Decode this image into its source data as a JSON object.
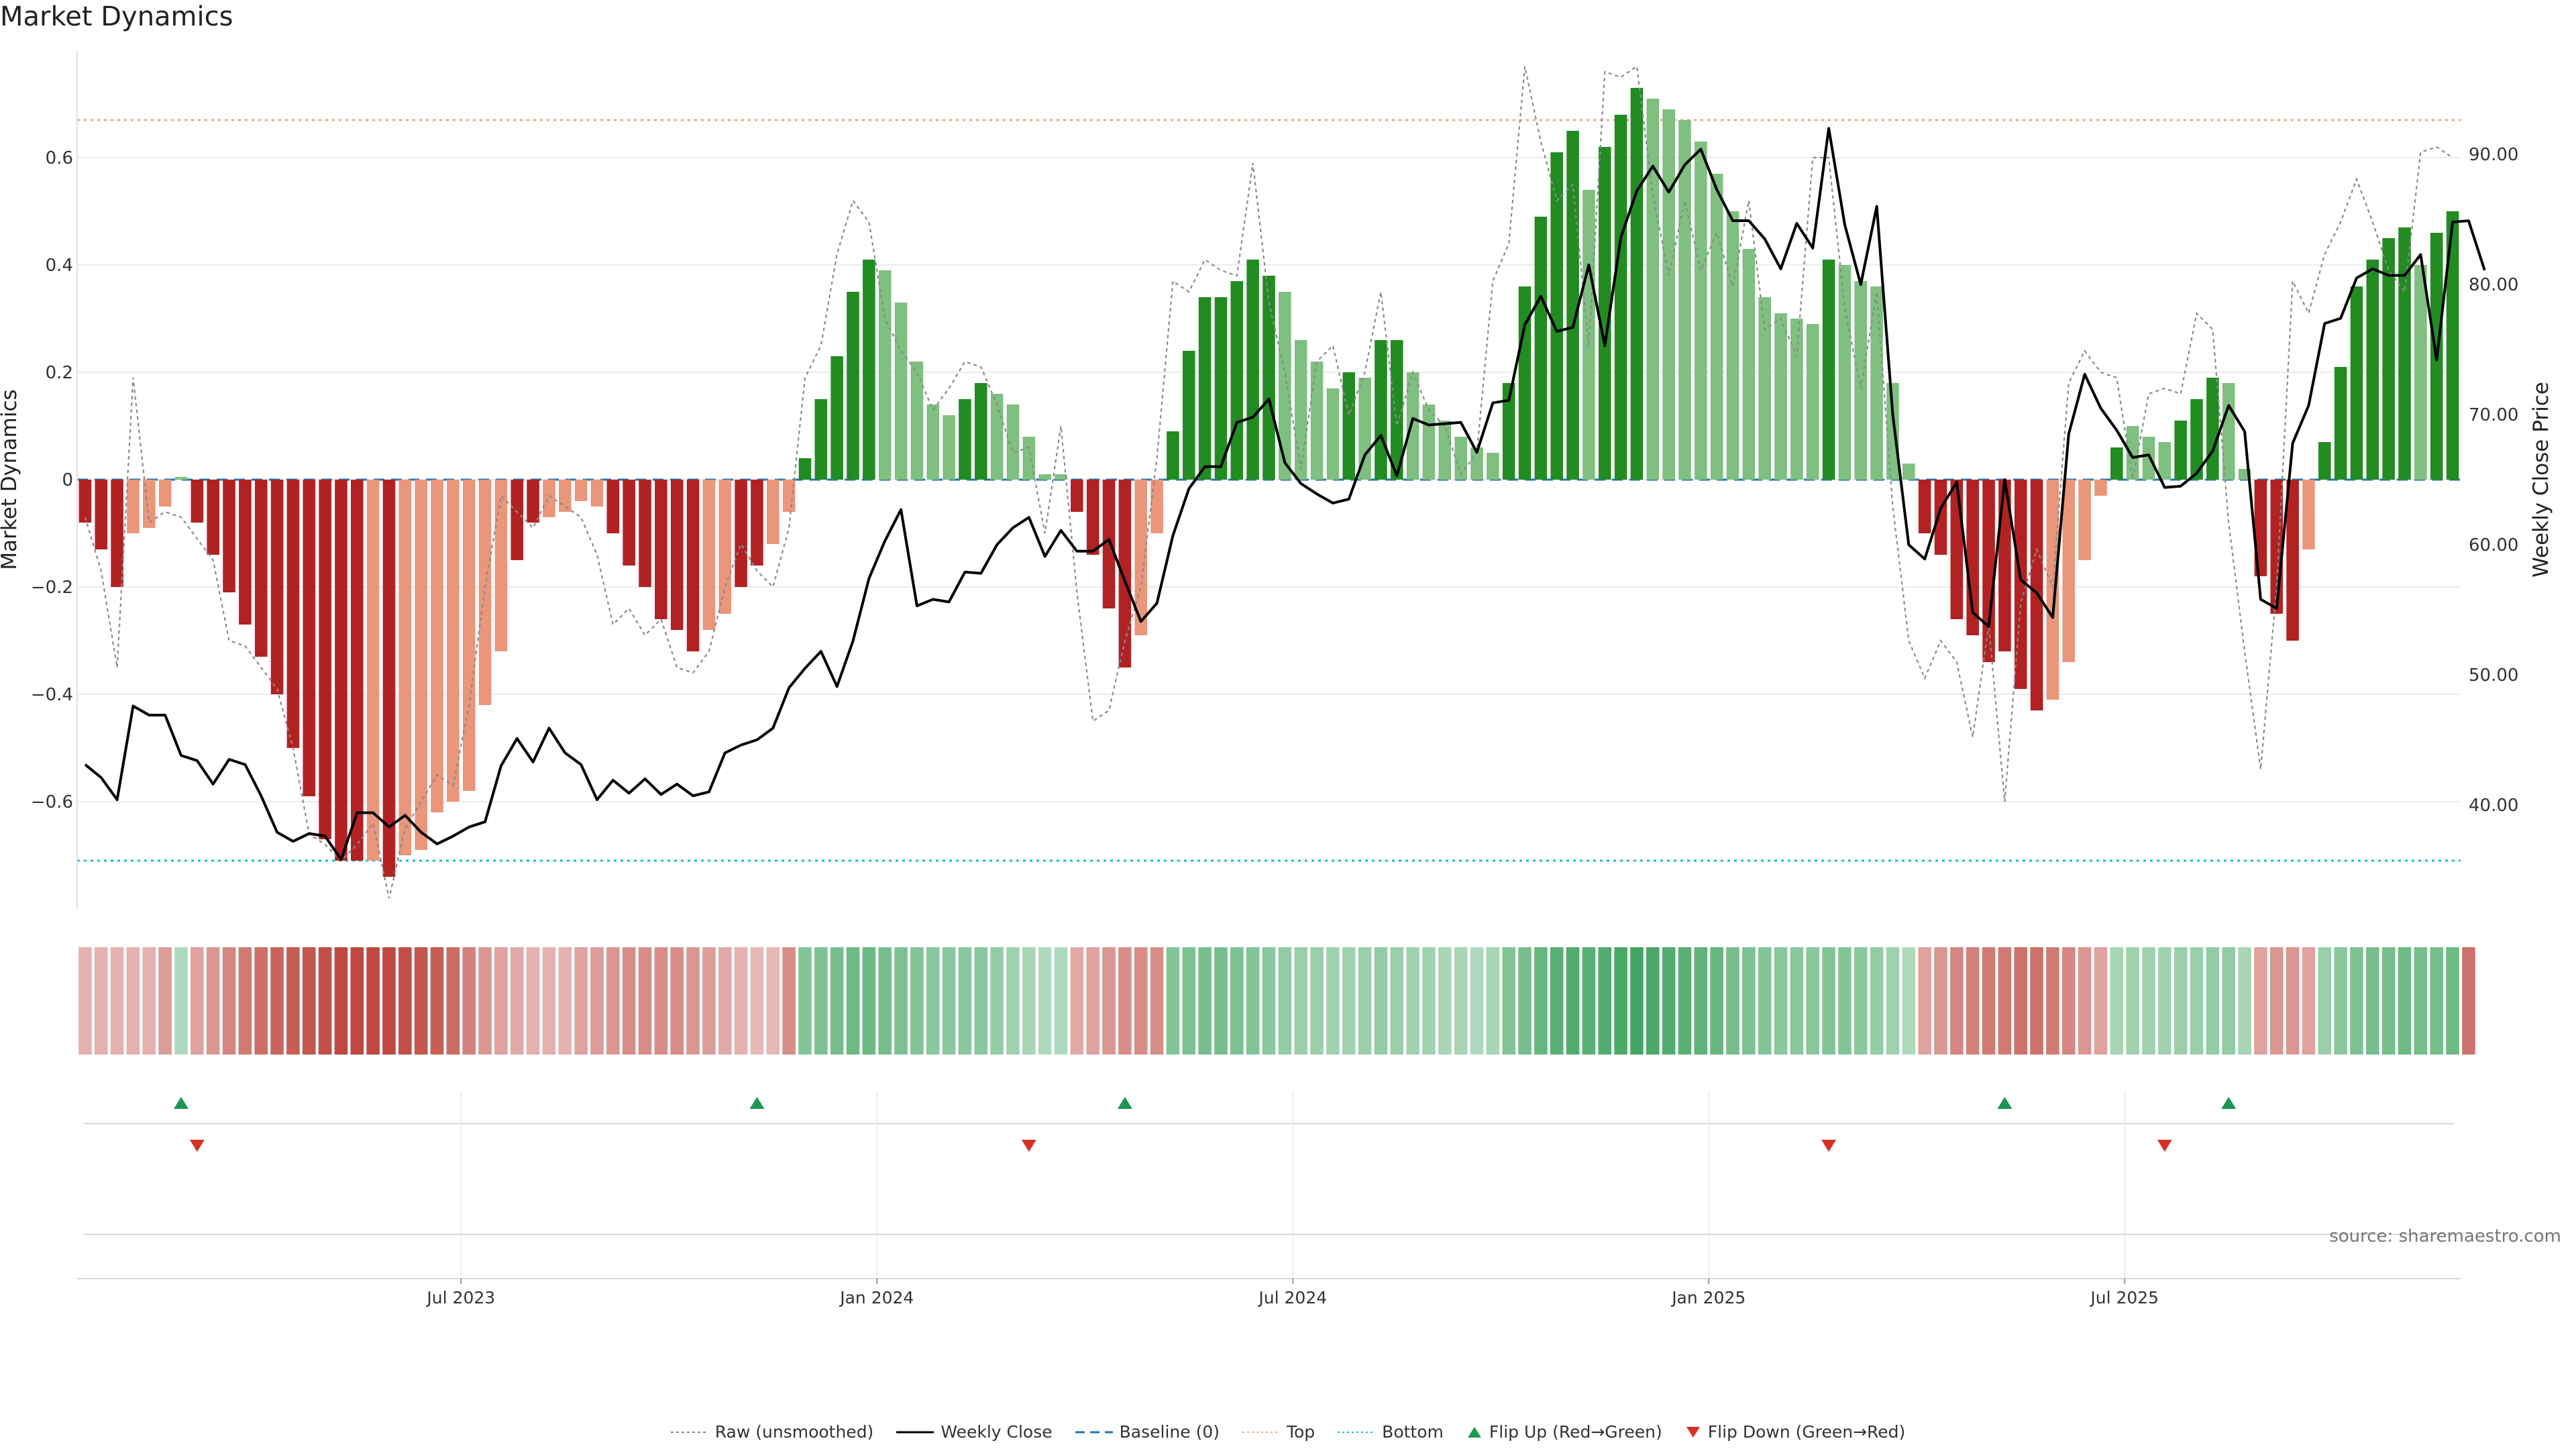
{
  "title": "Market Dynamics",
  "source": "source: sharemaestro.com",
  "chart_data": {
    "type": "bar",
    "title": "Market Dynamics",
    "ylabel_left": "Market Dynamics",
    "ylabel_right": "Weekly Close Price",
    "ylim_left": [
      -0.8,
      0.8
    ],
    "ylim_right": [
      32,
      98
    ],
    "yticks_left": [
      -0.6,
      -0.4,
      -0.2,
      0,
      0.2,
      0.4,
      0.6
    ],
    "ytick_labels_left": [
      "−0.6",
      "−0.4",
      "−0.2",
      "0",
      "0.2",
      "0.4",
      "0.6"
    ],
    "yticks_right": [
      40,
      50,
      60,
      70,
      80,
      90
    ],
    "ytick_labels_right": [
      "40.00",
      "50.00",
      "60.00",
      "70.00",
      "80.00",
      "90.00"
    ],
    "x_ticks": [
      {
        "label": "Jul 2023",
        "week": 24
      },
      {
        "label": "Jan 2024",
        "week": 50
      },
      {
        "label": "Jul 2024",
        "week": 76
      },
      {
        "label": "Jan 2025",
        "week": 102
      },
      {
        "label": "Jul 2025",
        "week": 128
      }
    ],
    "top_line": 0.67,
    "bottom_line": -0.71,
    "baseline": 0,
    "colors": {
      "strong_green": "#228b22",
      "light_green": "#7fbf7f",
      "strong_red": "#b22222",
      "light_red": "#e9967a",
      "top": "#f4a582",
      "bottom": "#17becf",
      "baseline": "#1f77b4",
      "flip_up": "#1a9850",
      "flip_down": "#d73027"
    },
    "series": [
      {
        "name": "Market Dynamics (bars)",
        "values": [
          -0.08,
          -0.13,
          -0.2,
          -0.1,
          -0.09,
          -0.05,
          0.005,
          -0.08,
          -0.14,
          -0.21,
          -0.27,
          -0.33,
          -0.4,
          -0.5,
          -0.59,
          -0.67,
          -0.71,
          -0.71,
          -0.71,
          -0.74,
          -0.7,
          -0.69,
          -0.62,
          -0.6,
          -0.58,
          -0.42,
          -0.32,
          -0.15,
          -0.08,
          -0.07,
          -0.06,
          -0.04,
          -0.05,
          -0.1,
          -0.16,
          -0.2,
          -0.26,
          -0.28,
          -0.32,
          -0.28,
          -0.25,
          -0.2,
          -0.16,
          -0.12,
          -0.06,
          0.04,
          0.15,
          0.23,
          0.35,
          0.41,
          0.39,
          0.33,
          0.22,
          0.14,
          0.12,
          0.15,
          0.18,
          0.16,
          0.14,
          0.08,
          0.01,
          0.01,
          -0.06,
          -0.14,
          -0.24,
          -0.35,
          -0.29,
          -0.1,
          0.09,
          0.24,
          0.34,
          0.34,
          0.37,
          0.41,
          0.38,
          0.35,
          0.26,
          0.22,
          0.17,
          0.2,
          0.19,
          0.26,
          0.26,
          0.2,
          0.14,
          0.11,
          0.08,
          0.06,
          0.05,
          0.18,
          0.36,
          0.49,
          0.61,
          0.65,
          0.54,
          0.62,
          0.68,
          0.73,
          0.71,
          0.69,
          0.67,
          0.63,
          0.57,
          0.5,
          0.43,
          0.34,
          0.31,
          0.3,
          0.29,
          0.41,
          0.4,
          0.37,
          0.36,
          0.18,
          0.03,
          -0.1,
          -0.14,
          -0.26,
          -0.29,
          -0.34,
          -0.32,
          -0.39,
          -0.43,
          -0.41,
          -0.34,
          -0.15,
          -0.03,
          0.06,
          0.1,
          0.08,
          0.07,
          0.11,
          0.15,
          0.19,
          0.18,
          0.02,
          -0.18,
          -0.25,
          -0.3,
          -0.13,
          0.07,
          0.21,
          0.36,
          0.41,
          0.45,
          0.47,
          0.4,
          0.46,
          0.5
        ],
        "shade": [
          "s",
          "s",
          "s",
          "l",
          "l",
          "l",
          "l",
          "s",
          "s",
          "s",
          "s",
          "s",
          "s",
          "s",
          "s",
          "s",
          "s",
          "s",
          "l",
          "s",
          "l",
          "l",
          "l",
          "l",
          "l",
          "l",
          "l",
          "s",
          "s",
          "l",
          "l",
          "l",
          "l",
          "s",
          "s",
          "s",
          "s",
          "s",
          "s",
          "l",
          "l",
          "s",
          "s",
          "l",
          "l",
          "s",
          "s",
          "s",
          "s",
          "s",
          "l",
          "l",
          "l",
          "l",
          "l",
          "s",
          "s",
          "l",
          "l",
          "l",
          "l",
          "l",
          "s",
          "s",
          "s",
          "s",
          "l",
          "l",
          "s",
          "s",
          "s",
          "s",
          "s",
          "s",
          "s",
          "l",
          "l",
          "l",
          "l",
          "s",
          "l",
          "s",
          "s",
          "l",
          "l",
          "l",
          "l",
          "l",
          "l",
          "s",
          "s",
          "s",
          "s",
          "s",
          "l",
          "s",
          "s",
          "s",
          "l",
          "l",
          "l",
          "l",
          "l",
          "l",
          "l",
          "l",
          "l",
          "l",
          "l",
          "s",
          "l",
          "l",
          "l",
          "l",
          "l",
          "s",
          "s",
          "s",
          "s",
          "s",
          "s",
          "s",
          "s",
          "l",
          "l",
          "l",
          "l",
          "s",
          "l",
          "l",
          "l",
          "s",
          "s",
          "s",
          "l",
          "l",
          "s",
          "s",
          "s",
          "l",
          "s",
          "s",
          "s",
          "s",
          "s",
          "s",
          "l",
          "s",
          "s"
        ]
      },
      {
        "name": "Weekly Close",
        "values": [
          43.1,
          42.1,
          40.4,
          47.6,
          46.9,
          46.9,
          43.8,
          43.4,
          41.6,
          43.5,
          43.1,
          40.7,
          37.9,
          37.2,
          37.8,
          37.6,
          35.8,
          39.4,
          39.4,
          38.3,
          39.2,
          37.9,
          37.0,
          37.6,
          38.3,
          38.7,
          43.0,
          45.1,
          43.3,
          45.9,
          44.0,
          43.1,
          40.4,
          41.9,
          40.9,
          42.0,
          40.8,
          41.6,
          40.7,
          41.0,
          44.0,
          44.6,
          45.0,
          45.9,
          49.0,
          50.5,
          51.8,
          49.1,
          52.6,
          57.4,
          60.3,
          62.7,
          55.3,
          55.8,
          55.6,
          57.9,
          57.8,
          60.0,
          61.3,
          62.1,
          59.1,
          61.1,
          59.5,
          59.5,
          60.4,
          57.2,
          54.1,
          55.5,
          60.7,
          64.3,
          66.0,
          66.0,
          69.4,
          69.8,
          71.2,
          66.3,
          64.7,
          63.9,
          63.2,
          63.5,
          66.9,
          68.4,
          65.3,
          69.7,
          69.2,
          69.3,
          69.4,
          67.1,
          70.9,
          71.1,
          76.9,
          79.1,
          76.4,
          76.7,
          81.5,
          75.3,
          83.6,
          87.2,
          89.1,
          87.1,
          89.2,
          90.4,
          87.3,
          84.9,
          84.9,
          83.5,
          81.2,
          84.7,
          82.8,
          92.0,
          84.6,
          80.0,
          86.0,
          70.0,
          60.0,
          58.9,
          62.8,
          64.8,
          54.8,
          53.7,
          65.0,
          57.3,
          56.3,
          54.4,
          68.5,
          73.1,
          70.5,
          68.8,
          66.7,
          66.9,
          64.4,
          64.5,
          65.5,
          67.2,
          70.7,
          68.7,
          55.8,
          55.1,
          67.8,
          70.7,
          77.0,
          77.4,
          80.5,
          81.2,
          80.7,
          80.7,
          82.3,
          74.2,
          84.8,
          84.9,
          81.1
        ]
      },
      {
        "name": "Raw (unsmoothed)",
        "values": [
          -0.07,
          -0.17,
          -0.35,
          0.19,
          -0.08,
          -0.06,
          -0.07,
          -0.11,
          -0.15,
          -0.3,
          -0.31,
          -0.35,
          -0.39,
          -0.5,
          -0.66,
          -0.68,
          -0.71,
          -0.68,
          -0.64,
          -0.78,
          -0.65,
          -0.6,
          -0.55,
          -0.57,
          -0.42,
          -0.2,
          -0.03,
          -0.06,
          -0.09,
          -0.03,
          -0.05,
          -0.07,
          -0.14,
          -0.27,
          -0.24,
          -0.29,
          -0.26,
          -0.35,
          -0.36,
          -0.32,
          -0.2,
          -0.12,
          -0.17,
          -0.2,
          -0.09,
          0.19,
          0.25,
          0.42,
          0.52,
          0.48,
          0.3,
          0.24,
          0.2,
          0.13,
          0.17,
          0.22,
          0.21,
          0.14,
          0.05,
          0.06,
          -0.1,
          0.1,
          -0.21,
          -0.45,
          -0.43,
          -0.3,
          -0.2,
          0.04,
          0.37,
          0.35,
          0.41,
          0.39,
          0.38,
          0.59,
          0.33,
          0.2,
          0.02,
          0.22,
          0.25,
          0.12,
          0.2,
          0.35,
          0.1,
          0.2,
          0.13,
          0.1,
          0.01,
          0.05,
          0.37,
          0.44,
          0.77,
          0.63,
          0.52,
          0.55,
          0.25,
          0.76,
          0.75,
          0.77,
          0.53,
          0.38,
          0.52,
          0.39,
          0.46,
          0.36,
          0.52,
          0.28,
          0.3,
          0.23,
          0.6,
          0.6,
          0.32,
          0.17,
          0.35,
          -0.05,
          -0.3,
          -0.37,
          -0.3,
          -0.34,
          -0.48,
          -0.27,
          -0.6,
          -0.23,
          -0.13,
          -0.2,
          0.18,
          0.24,
          0.2,
          0.19,
          0.0,
          0.16,
          0.17,
          0.16,
          0.31,
          0.28,
          -0.08,
          -0.32,
          -0.54,
          -0.2,
          0.37,
          0.31,
          0.42,
          0.48,
          0.56,
          0.48,
          0.39,
          0.35,
          0.61,
          0.62,
          0.6
        ]
      },
      {
        "name": "Baseline (0)"
      },
      {
        "name": "Top"
      },
      {
        "name": "Bottom"
      }
    ],
    "heat_strip": [
      0.25,
      0.25,
      0.25,
      0.25,
      0.25,
      0.4,
      0.25,
      0.35,
      0.45,
      0.55,
      0.65,
      0.72,
      0.8,
      0.85,
      0.9,
      0.95,
      1.0,
      1.0,
      1.0,
      1.0,
      0.95,
      0.9,
      0.85,
      0.75,
      0.6,
      0.45,
      0.35,
      0.3,
      0.25,
      0.25,
      0.25,
      0.35,
      0.4,
      0.45,
      0.5,
      0.5,
      0.5,
      0.5,
      0.45,
      0.4,
      0.3,
      0.25,
      0.2,
      0.2,
      0.5,
      0.55,
      0.6,
      0.65,
      0.7,
      0.72,
      0.65,
      0.6,
      0.55,
      0.5,
      0.5,
      0.5,
      0.5,
      0.45,
      0.35,
      0.3,
      0.25,
      0.25,
      0.3,
      0.35,
      0.45,
      0.5,
      0.5,
      0.5,
      0.55,
      0.6,
      0.65,
      0.65,
      0.6,
      0.55,
      0.5,
      0.45,
      0.4,
      0.4,
      0.35,
      0.35,
      0.4,
      0.45,
      0.4,
      0.35,
      0.35,
      0.3,
      0.3,
      0.25,
      0.3,
      0.55,
      0.65,
      0.75,
      0.85,
      0.9,
      0.85,
      0.9,
      0.95,
      1.0,
      0.95,
      0.9,
      0.85,
      0.8,
      0.75,
      0.65,
      0.6,
      0.55,
      0.5,
      0.5,
      0.5,
      0.55,
      0.55,
      0.5,
      0.45,
      0.35,
      0.25,
      0.35,
      0.45,
      0.55,
      0.6,
      0.65,
      0.65,
      0.7,
      0.7,
      0.65,
      0.55,
      0.45,
      0.35,
      0.3,
      0.35,
      0.35,
      0.35,
      0.4,
      0.4,
      0.45,
      0.45,
      0.3,
      0.35,
      0.45,
      0.45,
      0.35,
      0.4,
      0.5,
      0.6,
      0.65,
      0.65,
      0.7,
      0.65,
      0.65,
      0.7,
      0.7
    ],
    "flip_up_weeks": [
      6,
      42,
      65,
      120,
      134
    ],
    "flip_down_weeks": [
      7,
      59,
      109,
      130
    ],
    "legend": [
      "Raw (unsmoothed)",
      "Weekly Close",
      "Baseline (0)",
      "Top",
      "Bottom",
      "Flip Up (Red→Green)",
      "Flip Down (Green→Red)"
    ]
  }
}
